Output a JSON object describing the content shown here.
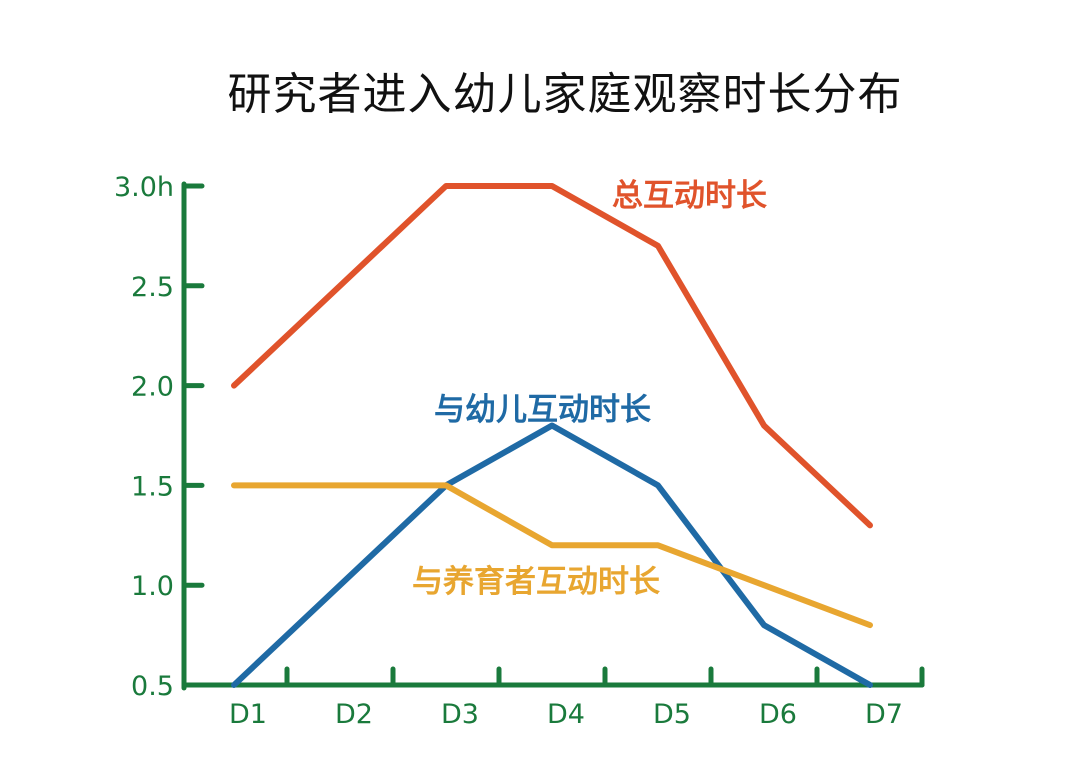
{
  "chart_data": {
    "type": "line",
    "title": "研究者进入幼儿家庭观察时长分布",
    "categories": [
      "D1",
      "D2",
      "D3",
      "D4",
      "D5",
      "D6",
      "D7"
    ],
    "y_ticks": [
      "0.5",
      "1.0",
      "1.5",
      "2.0",
      "2.5",
      "3.0h"
    ],
    "ylim": [
      0.5,
      3.0
    ],
    "xlabel": "",
    "ylabel": "",
    "grid": false,
    "axis_color": "#1a7a3c",
    "series": [
      {
        "name": "总互动时长",
        "color": "#e0532b",
        "values": [
          2.0,
          2.5,
          3.0,
          3.0,
          2.7,
          1.8,
          1.3
        ]
      },
      {
        "name": "与幼儿互动时长",
        "color": "#1f6aa5",
        "values": [
          0.5,
          1.0,
          1.5,
          1.8,
          1.5,
          0.8,
          0.5
        ]
      },
      {
        "name": "与养育者互动时长",
        "color": "#e8a630",
        "values": [
          1.5,
          1.5,
          1.5,
          1.2,
          1.2,
          1.0,
          0.8
        ]
      }
    ]
  }
}
